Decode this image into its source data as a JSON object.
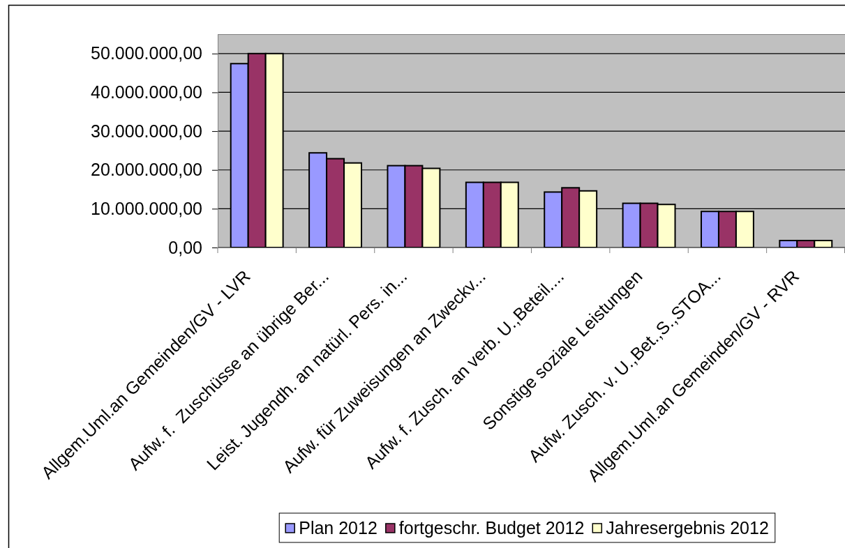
{
  "chart_data": {
    "type": "bar",
    "categories": [
      "Allgem.Uml.an Gemeinden/GV - LVR",
      "Aufw. f.  Zuschüsse an übrige Ber...",
      "Leist. Jugendh. an natürl. Pers. in...",
      "Aufw. für Zuweisungen an Zweckv...",
      "Aufw. f. Zusch. an verb. U.,Beteil....",
      "Sonstige soziale Leistungen",
      "Aufw. Zusch. v. U.,Bet.,S.,STOA...",
      "Allgem.Uml.an Gemeinden/GV - RVR"
    ],
    "series": [
      {
        "name": "Plan 2012",
        "color": "#9999ff",
        "values": [
          47400000,
          24400000,
          21100000,
          16800000,
          14300000,
          11400000,
          9300000,
          1800000
        ]
      },
      {
        "name": "fortgeschr. Budget 2012",
        "color": "#993366",
        "values": [
          50000000,
          22900000,
          21100000,
          16800000,
          15400000,
          11400000,
          9300000,
          1800000
        ]
      },
      {
        "name": "Jahresergebnis 2012",
        "color": "#ffffcc",
        "values": [
          50000000,
          21800000,
          20400000,
          16800000,
          14600000,
          11100000,
          9300000,
          1800000
        ]
      }
    ],
    "ylim": [
      0,
      55000000
    ],
    "yticks": [
      {
        "value": 0,
        "label": "0,00"
      },
      {
        "value": 10000000,
        "label": "10.000.000,00"
      },
      {
        "value": 20000000,
        "label": "20.000.000,00"
      },
      {
        "value": 30000000,
        "label": "30.000.000,00"
      },
      {
        "value": 40000000,
        "label": "40.000.000,00"
      },
      {
        "value": 50000000,
        "label": "50.000.000,00"
      }
    ],
    "grid": "y",
    "legend": "bottom"
  }
}
